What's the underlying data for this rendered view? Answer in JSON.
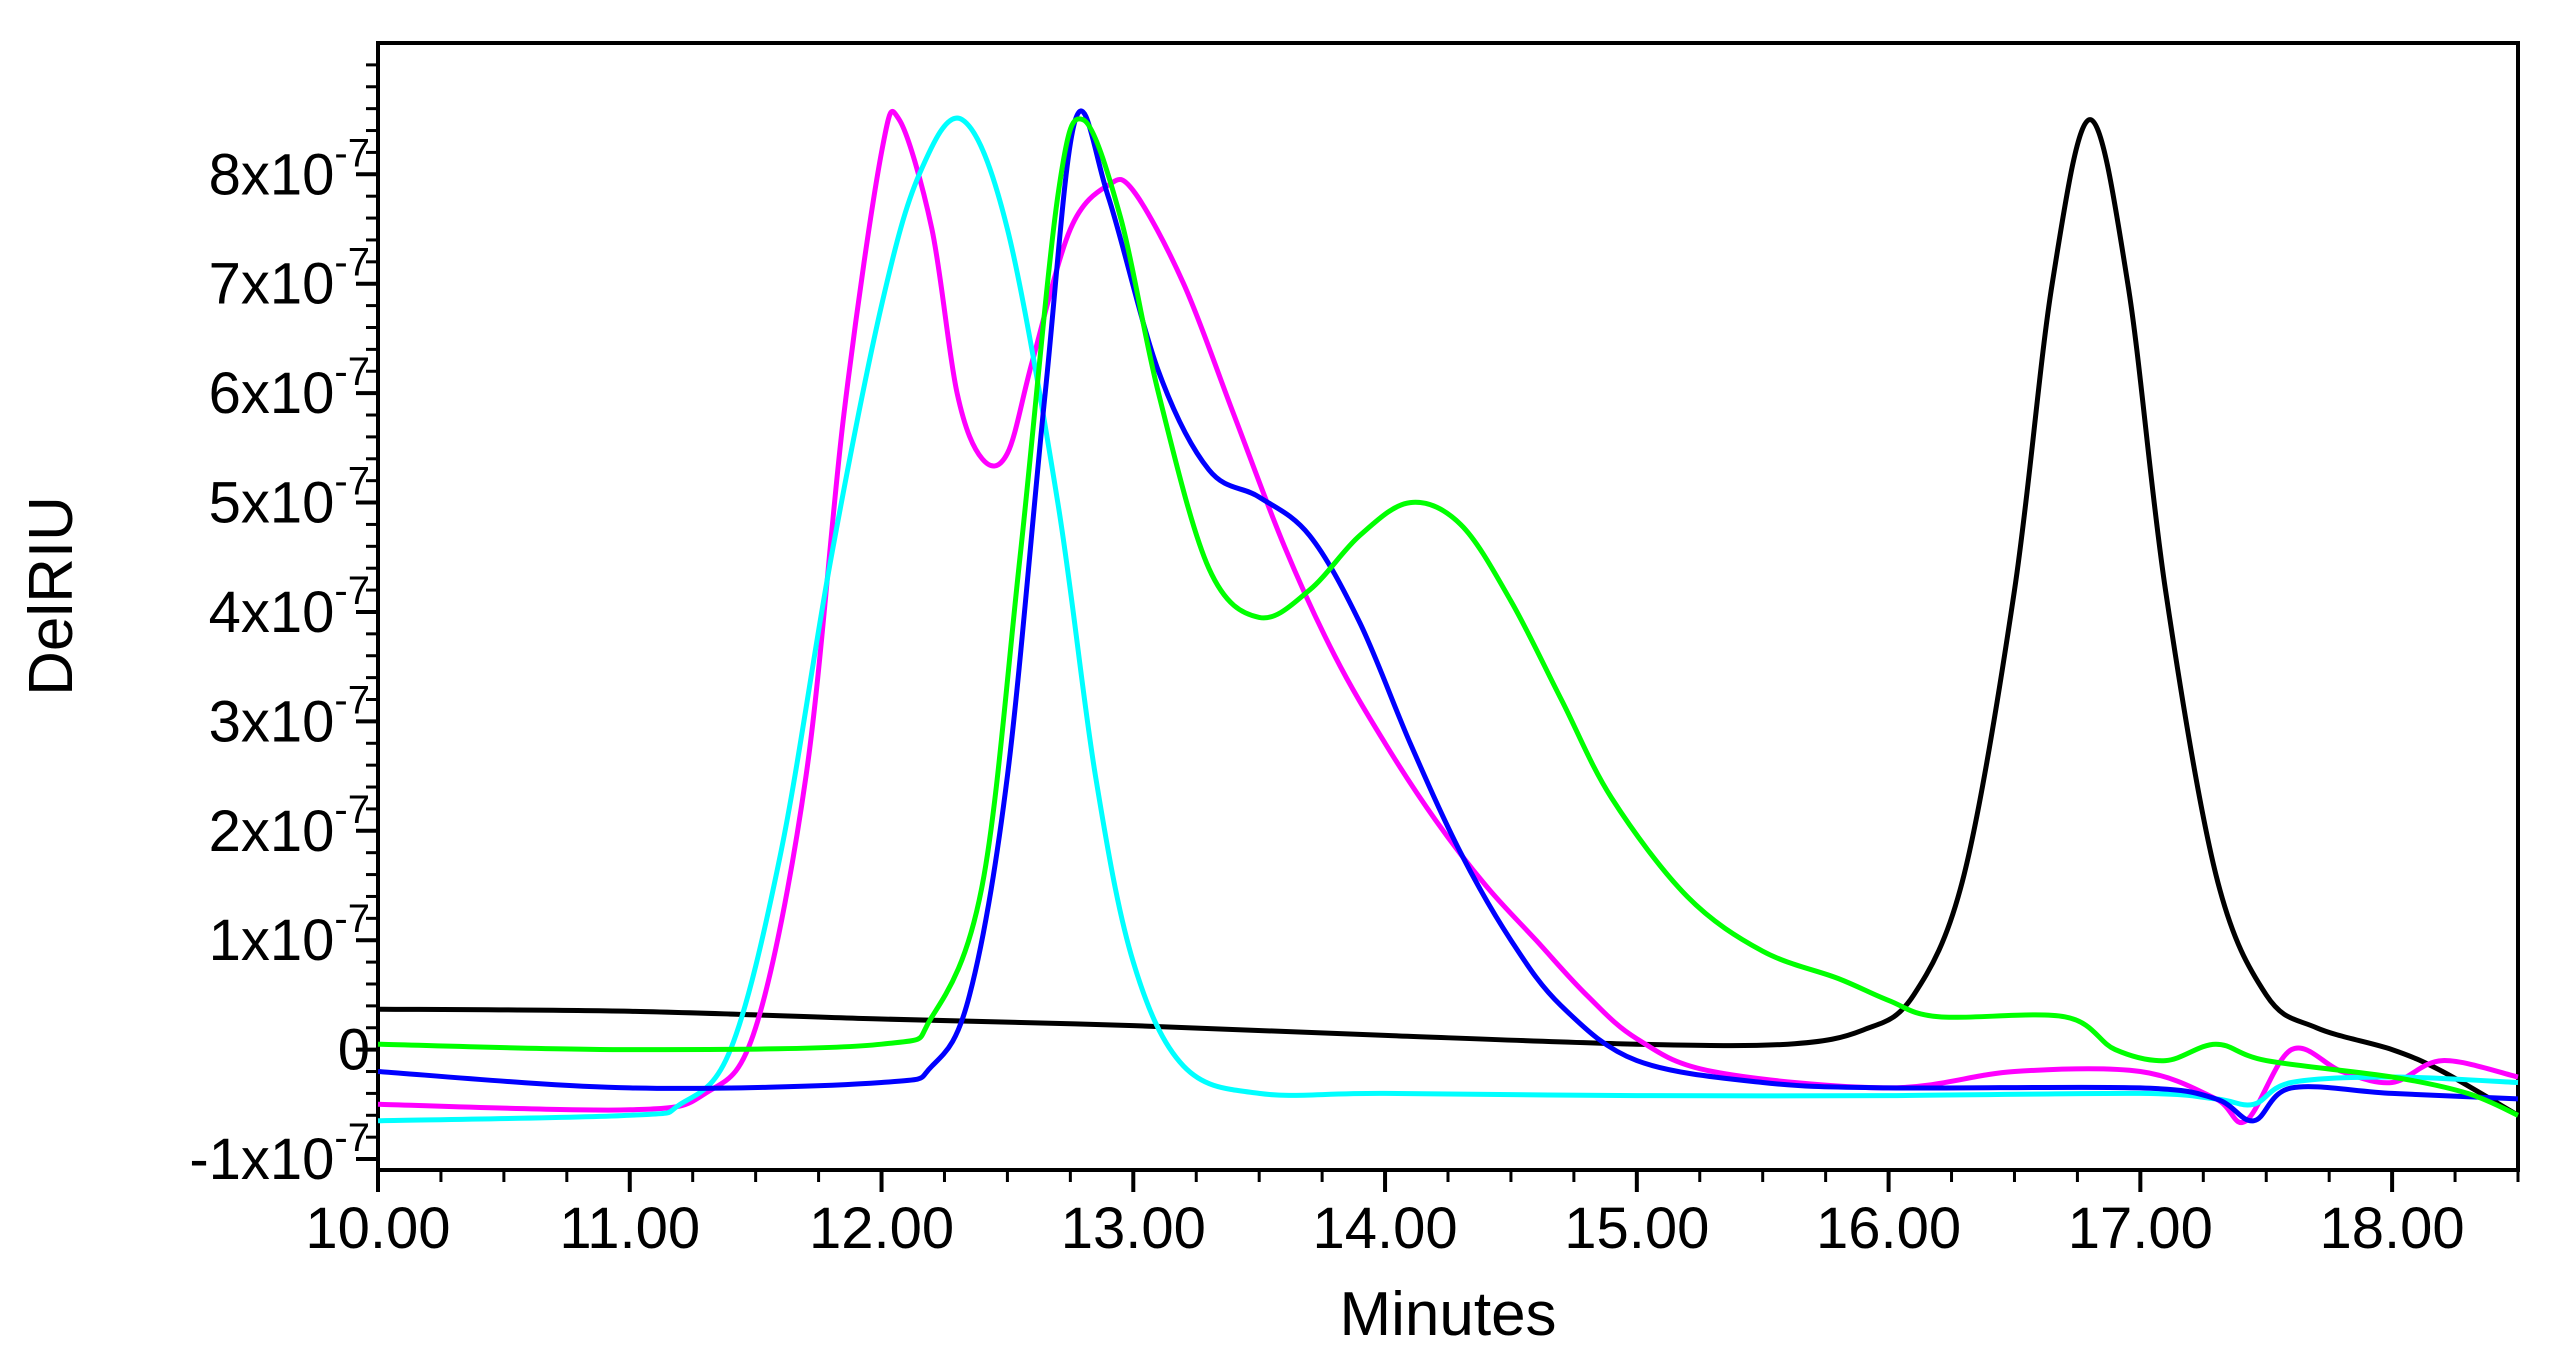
{
  "chart_data": {
    "type": "line",
    "title": "",
    "xlabel": "Minutes",
    "ylabel": "DelRIU",
    "xlim": [
      10.0,
      18.5
    ],
    "ylim": [
      -1.1e-07,
      9.2e-07
    ],
    "grid": false,
    "legend": "none",
    "x_ticks": [
      {
        "value": 10,
        "label": "10.00"
      },
      {
        "value": 11,
        "label": "11.00"
      },
      {
        "value": 12,
        "label": "12.00"
      },
      {
        "value": 13,
        "label": "13.00"
      },
      {
        "value": 14,
        "label": "14.00"
      },
      {
        "value": 15,
        "label": "15.00"
      },
      {
        "value": 16,
        "label": "16.00"
      },
      {
        "value": 17,
        "label": "17.00"
      },
      {
        "value": 18,
        "label": "18.00"
      }
    ],
    "y_ticks": [
      {
        "value": -1e-07,
        "base": "-1x10",
        "exp": "-7"
      },
      {
        "value": 0,
        "base": "0",
        "exp": ""
      },
      {
        "value": 1e-07,
        "base": "1x10",
        "exp": "-7"
      },
      {
        "value": 2e-07,
        "base": "2x10",
        "exp": "-7"
      },
      {
        "value": 3e-07,
        "base": "3x10",
        "exp": "-7"
      },
      {
        "value": 4e-07,
        "base": "4x10",
        "exp": "-7"
      },
      {
        "value": 5e-07,
        "base": "5x10",
        "exp": "-7"
      },
      {
        "value": 6e-07,
        "base": "6x10",
        "exp": "-7"
      },
      {
        "value": 7e-07,
        "base": "7x10",
        "exp": "-7"
      },
      {
        "value": 8e-07,
        "base": "8x10",
        "exp": "-7"
      }
    ],
    "series": [
      {
        "name": "black",
        "color": "#000000",
        "points": [
          [
            10.0,
            0.37
          ],
          [
            11.0,
            0.35
          ],
          [
            12.0,
            0.28
          ],
          [
            13.0,
            0.22
          ],
          [
            14.0,
            0.13
          ],
          [
            15.0,
            0.05
          ],
          [
            15.6,
            0.05
          ],
          [
            15.9,
            0.18
          ],
          [
            16.1,
            0.5
          ],
          [
            16.3,
            1.6
          ],
          [
            16.5,
            4.2
          ],
          [
            16.65,
            7.0
          ],
          [
            16.8,
            8.5
          ],
          [
            16.95,
            7.0
          ],
          [
            17.1,
            4.2
          ],
          [
            17.3,
            1.6
          ],
          [
            17.5,
            0.5
          ],
          [
            17.7,
            0.2
          ],
          [
            18.0,
            0.0
          ],
          [
            18.2,
            -0.2
          ],
          [
            18.5,
            -0.6
          ]
        ]
      },
      {
        "name": "magenta",
        "color": "#ff00ff",
        "points": [
          [
            10.0,
            -0.5
          ],
          [
            11.0,
            -0.55
          ],
          [
            11.3,
            -0.4
          ],
          [
            11.5,
            0.2
          ],
          [
            11.7,
            2.5
          ],
          [
            11.85,
            5.8
          ],
          [
            12.0,
            8.2
          ],
          [
            12.07,
            8.5
          ],
          [
            12.2,
            7.5
          ],
          [
            12.3,
            6.0
          ],
          [
            12.4,
            5.4
          ],
          [
            12.5,
            5.45
          ],
          [
            12.6,
            6.3
          ],
          [
            12.75,
            7.5
          ],
          [
            12.9,
            7.9
          ],
          [
            13.0,
            7.85
          ],
          [
            13.2,
            7.0
          ],
          [
            13.4,
            5.8
          ],
          [
            13.6,
            4.6
          ],
          [
            13.8,
            3.6
          ],
          [
            14.0,
            2.8
          ],
          [
            14.2,
            2.1
          ],
          [
            14.4,
            1.5
          ],
          [
            14.6,
            1.0
          ],
          [
            14.8,
            0.5
          ],
          [
            15.0,
            0.1
          ],
          [
            15.3,
            -0.2
          ],
          [
            16.0,
            -0.35
          ],
          [
            16.5,
            -0.2
          ],
          [
            17.0,
            -0.2
          ],
          [
            17.3,
            -0.45
          ],
          [
            17.42,
            -0.65
          ],
          [
            17.6,
            0.0
          ],
          [
            17.8,
            -0.2
          ],
          [
            18.0,
            -0.3
          ],
          [
            18.2,
            -0.1
          ],
          [
            18.5,
            -0.25
          ]
        ]
      },
      {
        "name": "cyan",
        "color": "#00ffff",
        "points": [
          [
            10.0,
            -0.65
          ],
          [
            11.0,
            -0.6
          ],
          [
            11.2,
            -0.5
          ],
          [
            11.4,
            0.0
          ],
          [
            11.6,
            1.8
          ],
          [
            11.8,
            4.5
          ],
          [
            12.0,
            6.8
          ],
          [
            12.15,
            8.0
          ],
          [
            12.32,
            8.5
          ],
          [
            12.5,
            7.5
          ],
          [
            12.7,
            5.0
          ],
          [
            12.85,
            2.5
          ],
          [
            13.0,
            0.8
          ],
          [
            13.2,
            -0.15
          ],
          [
            13.5,
            -0.4
          ],
          [
            14.0,
            -0.4
          ],
          [
            15.0,
            -0.42
          ],
          [
            16.0,
            -0.42
          ],
          [
            17.0,
            -0.4
          ],
          [
            17.3,
            -0.45
          ],
          [
            17.45,
            -0.5
          ],
          [
            17.6,
            -0.3
          ],
          [
            18.0,
            -0.25
          ],
          [
            18.5,
            -0.3
          ]
        ]
      },
      {
        "name": "blue",
        "color": "#0000ff",
        "points": [
          [
            10.0,
            -0.2
          ],
          [
            11.0,
            -0.35
          ],
          [
            12.0,
            -0.3
          ],
          [
            12.2,
            -0.15
          ],
          [
            12.35,
            0.5
          ],
          [
            12.5,
            2.5
          ],
          [
            12.65,
            6.0
          ],
          [
            12.77,
            8.5
          ],
          [
            12.9,
            7.8
          ],
          [
            13.1,
            6.2
          ],
          [
            13.3,
            5.3
          ],
          [
            13.5,
            5.05
          ],
          [
            13.7,
            4.7
          ],
          [
            13.9,
            3.9
          ],
          [
            14.1,
            2.8
          ],
          [
            14.3,
            1.8
          ],
          [
            14.5,
            1.0
          ],
          [
            14.7,
            0.4
          ],
          [
            15.0,
            -0.1
          ],
          [
            15.5,
            -0.3
          ],
          [
            16.0,
            -0.35
          ],
          [
            17.0,
            -0.35
          ],
          [
            17.3,
            -0.45
          ],
          [
            17.45,
            -0.65
          ],
          [
            17.6,
            -0.35
          ],
          [
            18.0,
            -0.4
          ],
          [
            18.5,
            -0.45
          ]
        ]
      },
      {
        "name": "green",
        "color": "#00ff00",
        "points": [
          [
            10.0,
            0.05
          ],
          [
            11.0,
            0.0
          ],
          [
            12.0,
            0.05
          ],
          [
            12.2,
            0.3
          ],
          [
            12.4,
            1.5
          ],
          [
            12.55,
            4.5
          ],
          [
            12.7,
            7.8
          ],
          [
            12.8,
            8.5
          ],
          [
            12.95,
            7.6
          ],
          [
            13.1,
            6.0
          ],
          [
            13.3,
            4.4
          ],
          [
            13.5,
            3.95
          ],
          [
            13.7,
            4.2
          ],
          [
            13.9,
            4.7
          ],
          [
            14.1,
            5.0
          ],
          [
            14.3,
            4.8
          ],
          [
            14.5,
            4.1
          ],
          [
            14.7,
            3.2
          ],
          [
            14.9,
            2.3
          ],
          [
            15.2,
            1.4
          ],
          [
            15.5,
            0.9
          ],
          [
            15.8,
            0.65
          ],
          [
            16.0,
            0.45
          ],
          [
            16.2,
            0.3
          ],
          [
            16.7,
            0.3
          ],
          [
            16.9,
            0.0
          ],
          [
            17.1,
            -0.1
          ],
          [
            17.3,
            0.05
          ],
          [
            17.5,
            -0.1
          ],
          [
            18.0,
            -0.25
          ],
          [
            18.3,
            -0.4
          ],
          [
            18.5,
            -0.6
          ]
        ]
      }
    ],
    "y_unit_scale": 1e-07
  }
}
